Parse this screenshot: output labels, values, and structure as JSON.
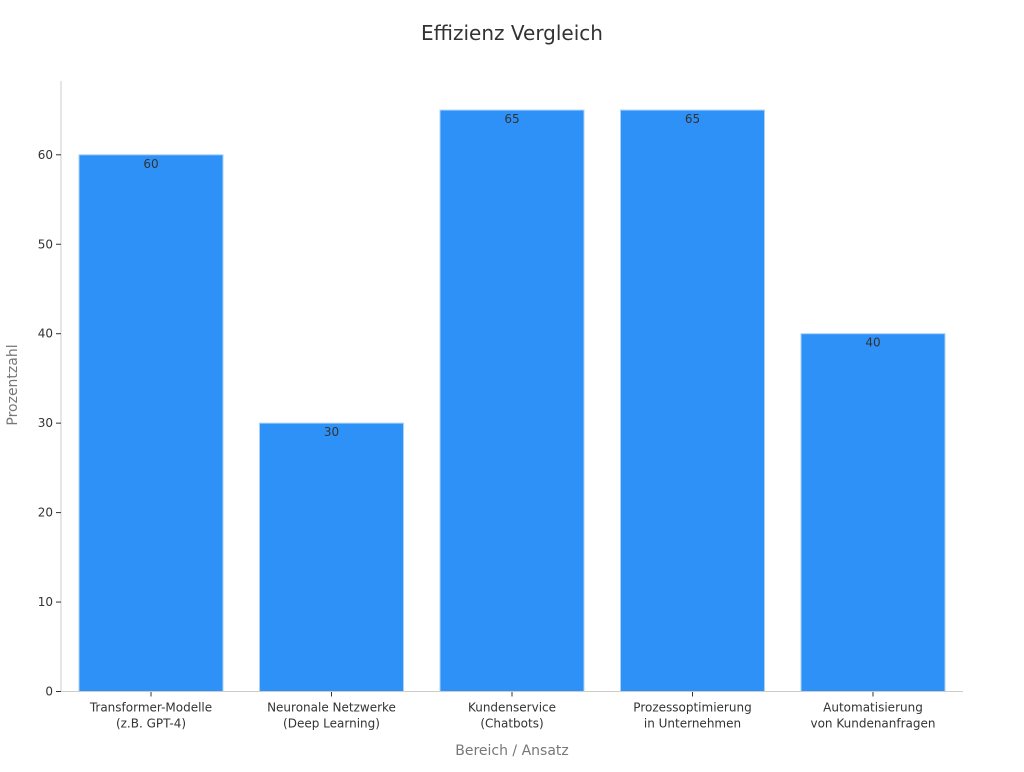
{
  "chart_data": {
    "type": "bar",
    "title": "Effizienz Vergleich",
    "xlabel": "Bereich / Ansatz",
    "ylabel": "Prozentzahl",
    "categories": [
      [
        "Transformer-Modelle",
        "(z.B. GPT-4)"
      ],
      [
        "Neuronale Netzwerke",
        "(Deep Learning)"
      ],
      [
        "Kundenservice",
        "(Chatbots)"
      ],
      [
        "Prozessoptimierung",
        "in Unternehmen"
      ],
      [
        "Automatisierung",
        "von Kundenanfragen"
      ]
    ],
    "values": [
      60,
      30,
      65,
      65,
      40
    ],
    "ylim": [
      0,
      68.25
    ],
    "yticks": [
      0,
      10,
      20,
      30,
      40,
      50,
      60
    ],
    "grid": false,
    "data_labels": true,
    "colors": {
      "bar": "#2E91F8",
      "bar_edge": "#A9D1FB",
      "axis": "#CCCCCC",
      "tick_text": "#333333",
      "axis_title": "#777777"
    }
  }
}
